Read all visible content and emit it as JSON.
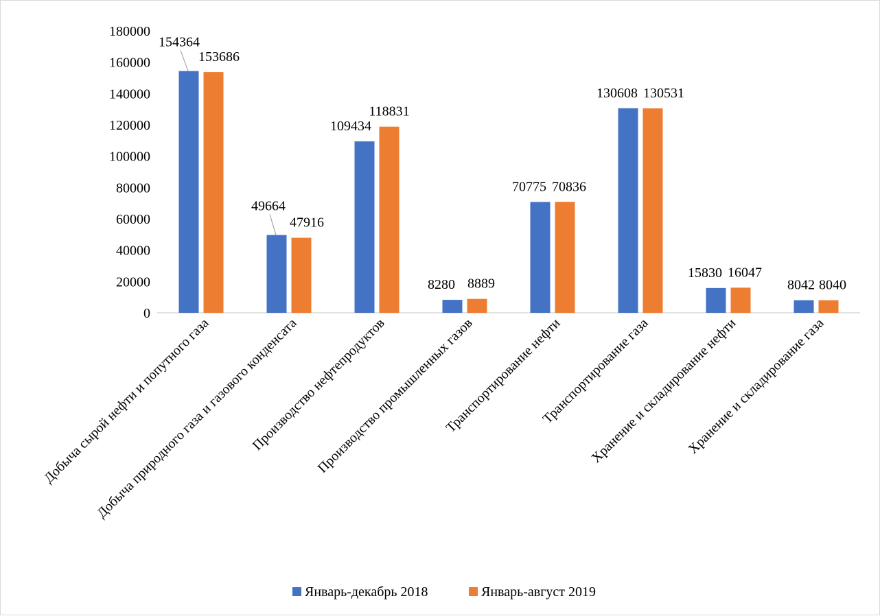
{
  "chart_data": {
    "type": "bar",
    "title": "",
    "xlabel": "",
    "ylabel": "",
    "ylim": [
      0,
      180000
    ],
    "yticks": [
      0,
      20000,
      40000,
      60000,
      80000,
      100000,
      120000,
      140000,
      160000,
      180000
    ],
    "grid": false,
    "legend_position": "bottom",
    "categories": [
      "Добыча сырой нефти и попутного газа",
      "Добыча природного газа и газового конденсата",
      "Производство нефтепродуктов",
      "Производство промышленных газов",
      "Транспортирование нефти",
      "Транспортирование газа",
      "Хранение и складирование нефти",
      "Хранение и складирование газа"
    ],
    "series": [
      {
        "name": "Январь-декабрь 2018",
        "color": "#4472c4",
        "values": [
          154364,
          49664,
          109434,
          8280,
          70775,
          130608,
          15830,
          8042
        ]
      },
      {
        "name": "Январь-август 2019",
        "color": "#ed7d31",
        "values": [
          153686,
          47916,
          118831,
          8889,
          70836,
          130531,
          16047,
          8040
        ]
      }
    ]
  }
}
